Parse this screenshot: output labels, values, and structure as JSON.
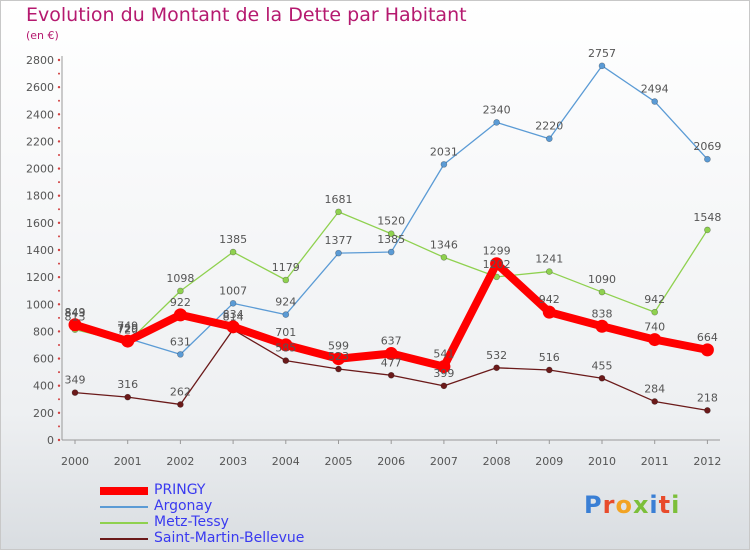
{
  "title": "Evolution du Montant de la Dette par Habitant",
  "unit": "(en €)",
  "chart_data": {
    "type": "line",
    "title": "Evolution du Montant de la Dette par Habitant",
    "subtitle": "(en €)",
    "x": [
      "2000",
      "2001",
      "2002",
      "2003",
      "2004",
      "2005",
      "2006",
      "2007",
      "2008",
      "2009",
      "2010",
      "2011",
      "2012"
    ],
    "ylim": [
      0,
      2800
    ],
    "yticks": [
      0,
      200,
      400,
      600,
      800,
      1000,
      1200,
      1400,
      1600,
      1800,
      2000,
      2200,
      2400,
      2600,
      2800
    ],
    "grid": false,
    "legend_position": "bottom-left",
    "series": [
      {
        "name": "Saint-Martin-Bellevue",
        "color": "#6b1a1a",
        "values": [
          349,
          316,
          262,
          814,
          585,
          523,
          477,
          399,
          532,
          516,
          455,
          284,
          218
        ],
        "labels": [
          "349",
          "316",
          "262",
          "814",
          "585",
          "523",
          "477",
          "399",
          "532",
          "516",
          "455",
          "284",
          "218"
        ]
      },
      {
        "name": "Metz-Tessy",
        "color": "#8fd14f",
        "values": [
          813,
          720,
          1098,
          1385,
          1179,
          1681,
          1520,
          1346,
          1202,
          1241,
          1090,
          942,
          1548
        ],
        "labels": [
          "813",
          "720",
          "1098",
          "1385",
          "1179",
          "1681",
          "1520",
          "1346",
          "1202",
          "1241",
          "1090",
          "942",
          "1548"
        ]
      },
      {
        "name": "Argonay",
        "color": "#5b9bd5",
        "values": [
          843,
          749,
          631,
          1007,
          924,
          1377,
          1385,
          2031,
          2340,
          2220,
          2757,
          2494,
          2069
        ],
        "labels": [
          "843",
          "749",
          "631",
          "1007",
          "924",
          "1377",
          "1385",
          "2031",
          "2340",
          "2220",
          "2757",
          "2494",
          "2069"
        ]
      },
      {
        "name": "PRINGY",
        "color": "#ff0000",
        "values": [
          849,
          729,
          922,
          834,
          701,
          599,
          637,
          541,
          1299,
          942,
          838,
          740,
          664
        ],
        "labels": [
          "849",
          "729",
          "922",
          "834",
          "701",
          "599",
          "637",
          "541",
          "1299",
          "942",
          "838",
          "740",
          "664"
        ]
      }
    ]
  },
  "legend": [
    {
      "name": "PRINGY",
      "color": "#ff0000"
    },
    {
      "name": "Argonay",
      "color": "#5b9bd5"
    },
    {
      "name": "Metz-Tessy",
      "color": "#8fd14f"
    },
    {
      "name": "Saint-Martin-Bellevue",
      "color": "#6b1a1a"
    }
  ],
  "logo": {
    "text": "Proxiti",
    "colors": [
      "#3a7fd5",
      "#e84b2c",
      "#f2a323",
      "#7cbf3a",
      "#3a7fd5",
      "#e84b2c",
      "#7cbf3a"
    ]
  }
}
